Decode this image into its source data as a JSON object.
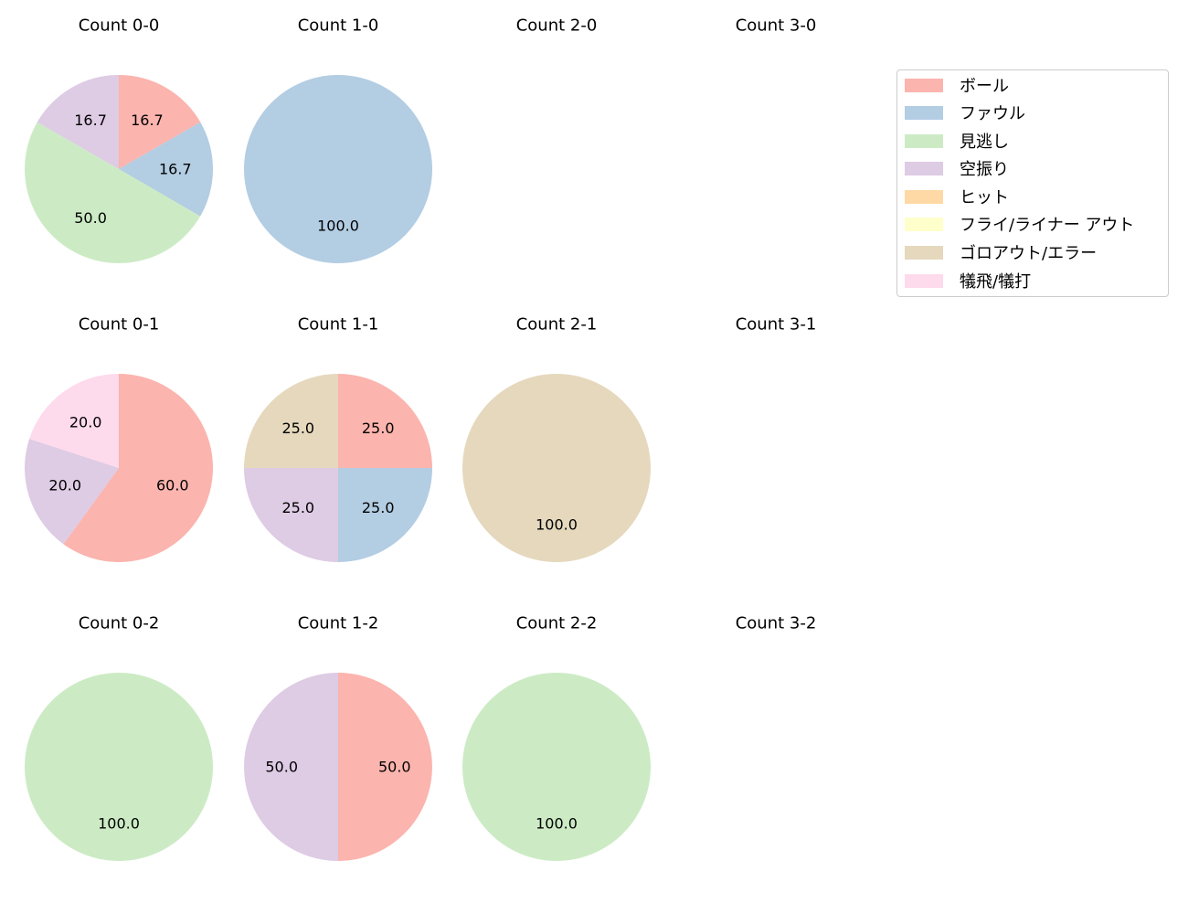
{
  "chart_data": {
    "type": "pie",
    "grid_rows": 3,
    "grid_cols": 4,
    "categories": [
      "ボール",
      "ファウル",
      "見逃し",
      "空振り",
      "ヒット",
      "フライ/ライナー アウト",
      "ゴロアウト/エラー",
      "犠飛/犠打"
    ],
    "colors": [
      "#fbb4ae",
      "#b3cde3",
      "#ccebc5",
      "#decbe4",
      "#fed9a6",
      "#ffffcc",
      "#e5d8bd",
      "#fddaec"
    ],
    "legend_position": "upper right",
    "subplots": [
      {
        "title": "Count 0-0",
        "row": 0,
        "col": 0,
        "slices": [
          {
            "category": "ボール",
            "value": 16.7,
            "label": "16.7"
          },
          {
            "category": "ファウル",
            "value": 16.7,
            "label": "16.7"
          },
          {
            "category": "見逃し",
            "value": 50.0,
            "label": "50.0"
          },
          {
            "category": "空振り",
            "value": 16.7,
            "label": "16.7"
          }
        ]
      },
      {
        "title": "Count 1-0",
        "row": 0,
        "col": 1,
        "slices": [
          {
            "category": "ファウル",
            "value": 100.0,
            "label": "100.0"
          }
        ]
      },
      {
        "title": "Count 2-0",
        "row": 0,
        "col": 2,
        "slices": []
      },
      {
        "title": "Count 3-0",
        "row": 0,
        "col": 3,
        "slices": []
      },
      {
        "title": "Count 0-1",
        "row": 1,
        "col": 0,
        "slices": [
          {
            "category": "ボール",
            "value": 60.0,
            "label": "60.0"
          },
          {
            "category": "空振り",
            "value": 20.0,
            "label": "20.0"
          },
          {
            "category": "犠飛/犠打",
            "value": 20.0,
            "label": "20.0"
          }
        ]
      },
      {
        "title": "Count 1-1",
        "row": 1,
        "col": 1,
        "slices": [
          {
            "category": "ボール",
            "value": 25.0,
            "label": "25.0"
          },
          {
            "category": "ファウル",
            "value": 25.0,
            "label": "25.0"
          },
          {
            "category": "空振り",
            "value": 25.0,
            "label": "25.0"
          },
          {
            "category": "ゴロアウト/エラー",
            "value": 25.0,
            "label": "25.0"
          }
        ]
      },
      {
        "title": "Count 2-1",
        "row": 1,
        "col": 2,
        "slices": [
          {
            "category": "ゴロアウト/エラー",
            "value": 100.0,
            "label": "100.0"
          }
        ]
      },
      {
        "title": "Count 3-1",
        "row": 1,
        "col": 3,
        "slices": []
      },
      {
        "title": "Count 0-2",
        "row": 2,
        "col": 0,
        "slices": [
          {
            "category": "見逃し",
            "value": 100.0,
            "label": "100.0"
          }
        ]
      },
      {
        "title": "Count 1-2",
        "row": 2,
        "col": 1,
        "slices": [
          {
            "category": "ボール",
            "value": 50.0,
            "label": "50.0"
          },
          {
            "category": "空振り",
            "value": 50.0,
            "label": "50.0"
          }
        ]
      },
      {
        "title": "Count 2-2",
        "row": 2,
        "col": 2,
        "slices": [
          {
            "category": "見逃し",
            "value": 100.0,
            "label": "100.0"
          }
        ]
      },
      {
        "title": "Count 3-2",
        "row": 2,
        "col": 3,
        "slices": []
      }
    ]
  },
  "legend": {
    "items": [
      {
        "label": "ボール",
        "color": "#fbb4ae"
      },
      {
        "label": "ファウル",
        "color": "#b3cde3"
      },
      {
        "label": "見逃し",
        "color": "#ccebc5"
      },
      {
        "label": "空振り",
        "color": "#decbe4"
      },
      {
        "label": "ヒット",
        "color": "#fed9a6"
      },
      {
        "label": "フライ/ライナー アウト",
        "color": "#ffffcc"
      },
      {
        "label": "ゴロアウト/エラー",
        "color": "#e5d8bd"
      },
      {
        "label": "犠飛/犠打",
        "color": "#fddaec"
      }
    ]
  }
}
